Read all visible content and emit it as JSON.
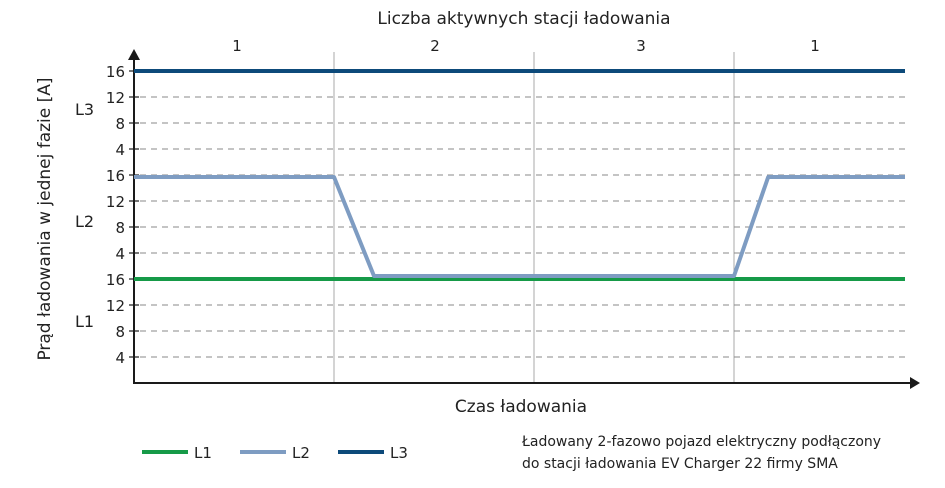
{
  "chart_data": {
    "type": "line",
    "top_axis_title": "Liczba aktywnych stacji ładowania",
    "segment_labels": [
      "1",
      "2",
      "3",
      "1"
    ],
    "xlabel": "Czas ładowania",
    "ylabel": "Prąd ładowania w jednej fazie [A]",
    "phase_bands": [
      {
        "label": "L3",
        "ticks": [
          "16",
          "12",
          "8",
          "4"
        ]
      },
      {
        "label": "L2",
        "ticks": [
          "16",
          "12",
          "8",
          "4"
        ]
      },
      {
        "label": "L1",
        "ticks": [
          "16",
          "12",
          "8",
          "4"
        ]
      }
    ],
    "y_tick_values": [
      4,
      8,
      12,
      16
    ],
    "band_max": 20,
    "x_segment_bounds": [
      0,
      1,
      2,
      3,
      4
    ],
    "grid": true,
    "legend_position": "bottom-left",
    "series": [
      {
        "name": "L1",
        "phase": 1,
        "color": "#169a48",
        "x": [
          0,
          4
        ],
        "y": [
          16,
          16
        ]
      },
      {
        "name": "L2",
        "phase": 2,
        "color": "#7e9cc2",
        "x": [
          0,
          1,
          1.2,
          3,
          3.2,
          4
        ],
        "y": [
          16,
          16,
          0,
          0,
          16,
          16
        ]
      },
      {
        "name": "L3",
        "phase": 3,
        "color": "#0d4a7a",
        "x": [
          0,
          4
        ],
        "y": [
          16,
          16
        ]
      }
    ],
    "note_lines": [
      "Ładowany 2-fazowo pojazd elektryczny podłączony",
      "do stacji ładowania EV Charger 22 firmy SMA"
    ]
  }
}
